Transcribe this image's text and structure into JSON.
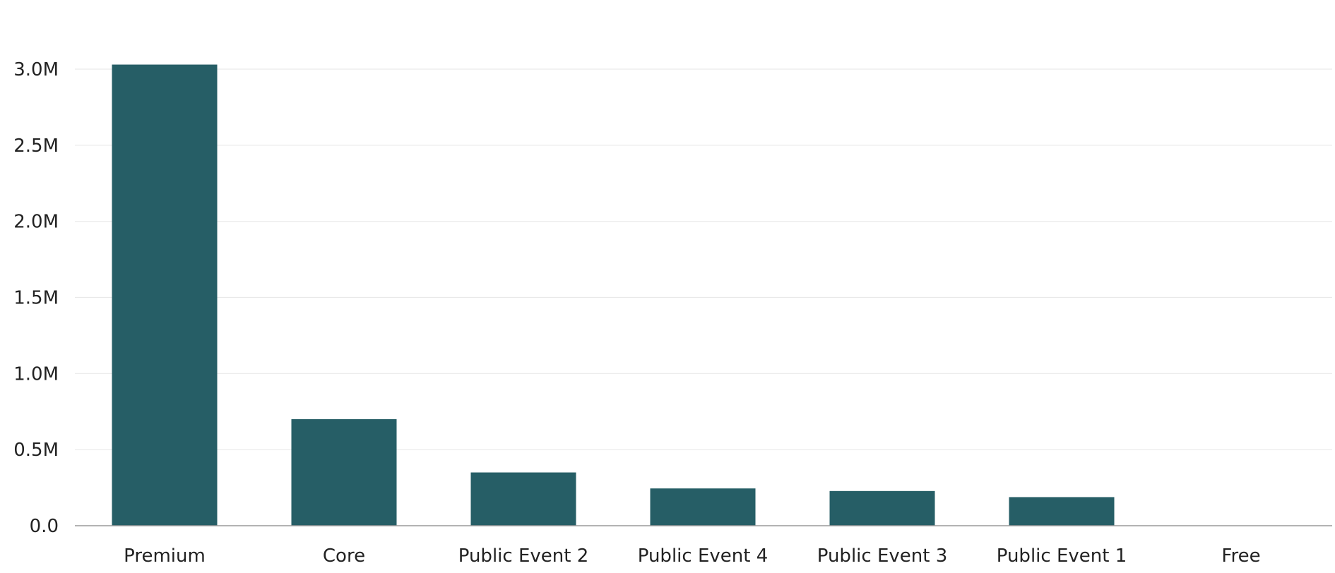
{
  "chart_data": {
    "type": "bar",
    "categories": [
      "Premium",
      "Core",
      "Public Event 2",
      "Public Event 4",
      "Public Event 3",
      "Public Event 1",
      "Free"
    ],
    "values": [
      3030000,
      700000,
      350000,
      245000,
      228000,
      188000,
      0
    ],
    "ylim": [
      0,
      3000000
    ],
    "yticks": [
      0,
      500000,
      1000000,
      1500000,
      2000000,
      2500000,
      3000000
    ],
    "ytick_labels": [
      "0.0",
      "0.5M",
      "1.0M",
      "1.5M",
      "2.0M",
      "2.5M",
      "3.0M"
    ],
    "grid": true,
    "bar_color": "#265e66",
    "grid_color": "#e9e9e9",
    "axis_color": "#9a9a9a"
  }
}
